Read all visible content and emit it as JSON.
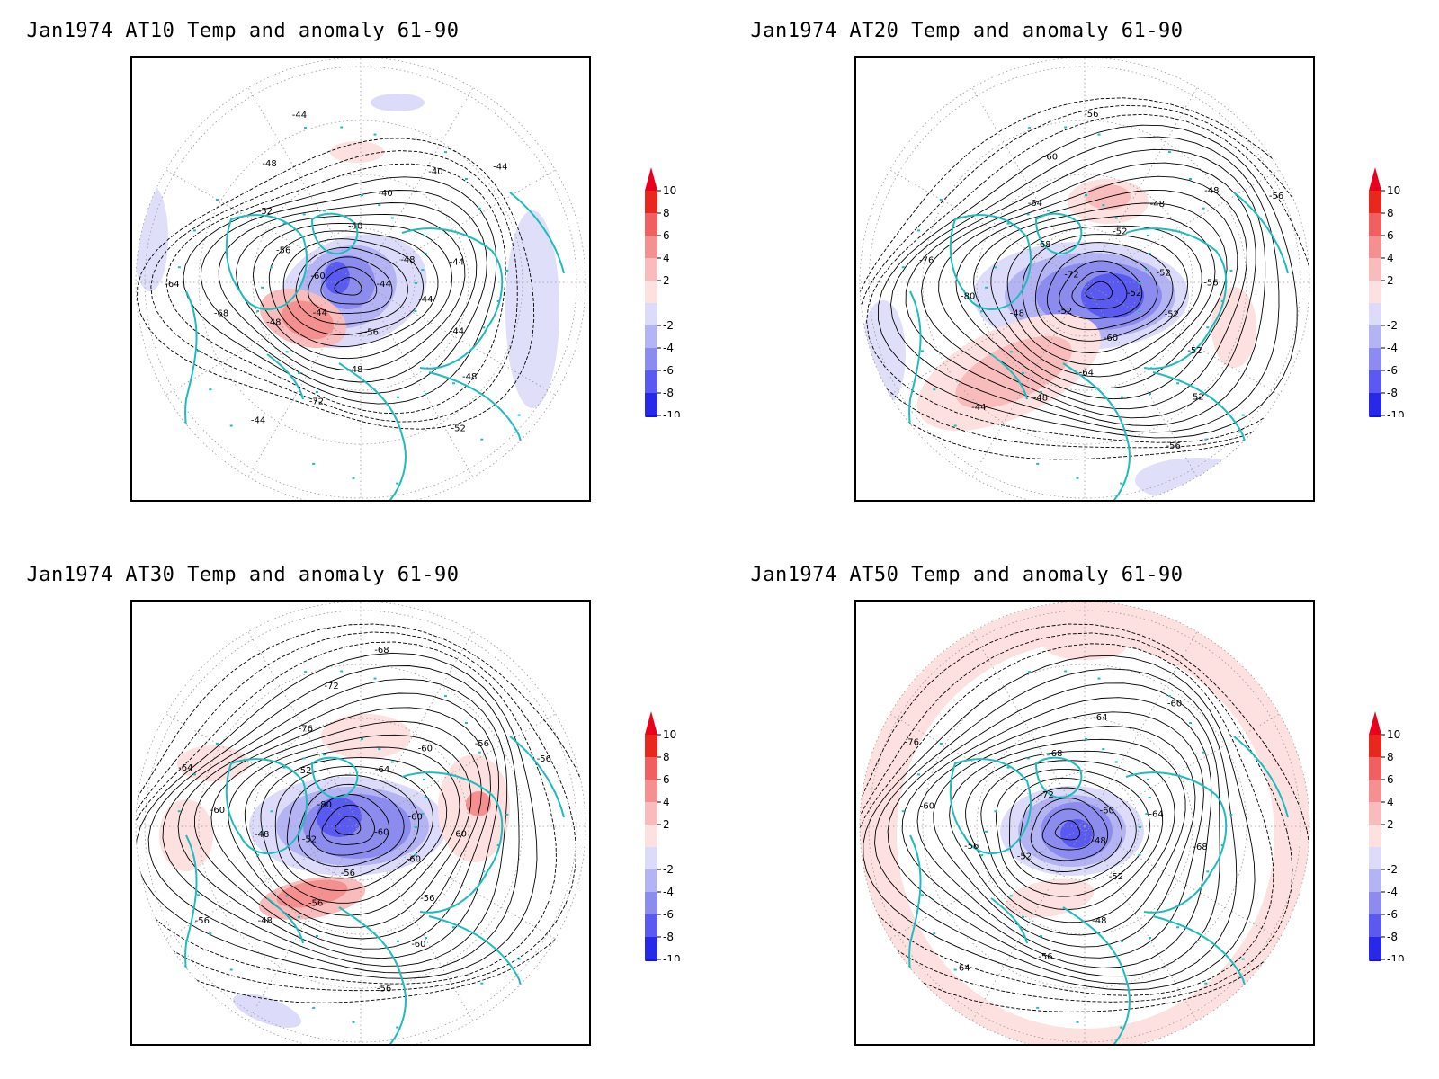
{
  "panels": [
    {
      "title": "Jan1974 AT10 Temp and anomaly 61-90",
      "contour_labels": [
        "-44",
        "-44",
        "-44",
        "-48",
        "-52",
        "-56",
        "-48",
        "-72",
        "-44",
        "-44",
        "-48",
        "-68",
        "-64",
        "-60",
        "-56",
        "-52",
        "-48",
        "-44",
        "-40",
        "-40",
        "-40",
        "-44",
        "-48",
        "-44"
      ],
      "anomaly_center": "cold-north-canada"
    },
    {
      "title": "Jan1974 AT20 Temp and anomaly 61-90",
      "contour_labels": [
        "-52",
        "-52",
        "-52",
        "-52",
        "-56",
        "-60",
        "-64",
        "-48",
        "-44",
        "-52",
        "-48",
        "-80",
        "-76",
        "-72",
        "-68",
        "-64",
        "-60",
        "-56",
        "-52",
        "-48",
        "-48",
        "-56",
        "-52",
        "-56"
      ],
      "anomaly_center": "cold-greenland"
    },
    {
      "title": "Jan1974 AT30 Temp and anomaly 61-90",
      "contour_labels": [
        "-60",
        "-60",
        "-56",
        "-60",
        "-56",
        "-56",
        "-56",
        "-48",
        "-56",
        "-52",
        "-48",
        "-60",
        "-64",
        "-80",
        "-52",
        "-76",
        "-72",
        "-68",
        "-64",
        "-60",
        "-56",
        "-56",
        "-60",
        "-60"
      ],
      "anomaly_center": "cold-greenland"
    },
    {
      "title": "Jan1974 AT50 Temp and anomaly 61-90",
      "contour_labels": [
        "-48",
        "-52",
        "-48",
        "-56",
        "-64",
        "-52",
        "-56",
        "-60",
        "-76",
        "-72",
        "-68",
        "-64",
        "-60",
        "-60",
        "-64",
        "-68"
      ],
      "anomaly_center": "cold-greenland"
    }
  ],
  "colorbar": {
    "ticks": [
      "10",
      "8",
      "6",
      "4",
      "2",
      "-2",
      "-4",
      "-6",
      "-8",
      "-10"
    ],
    "colors": [
      "#e8281c",
      "#f06060",
      "#f59090",
      "#f9bcbc",
      "#fde0e0",
      "#dcdcfa",
      "#b4b4f5",
      "#8c8cf0",
      "#5a5af0",
      "#2828e8"
    ],
    "top_arrow": "#e8001c",
    "bottom_arrow": "#1414e6"
  },
  "coast_color": "#1ebcbc"
}
